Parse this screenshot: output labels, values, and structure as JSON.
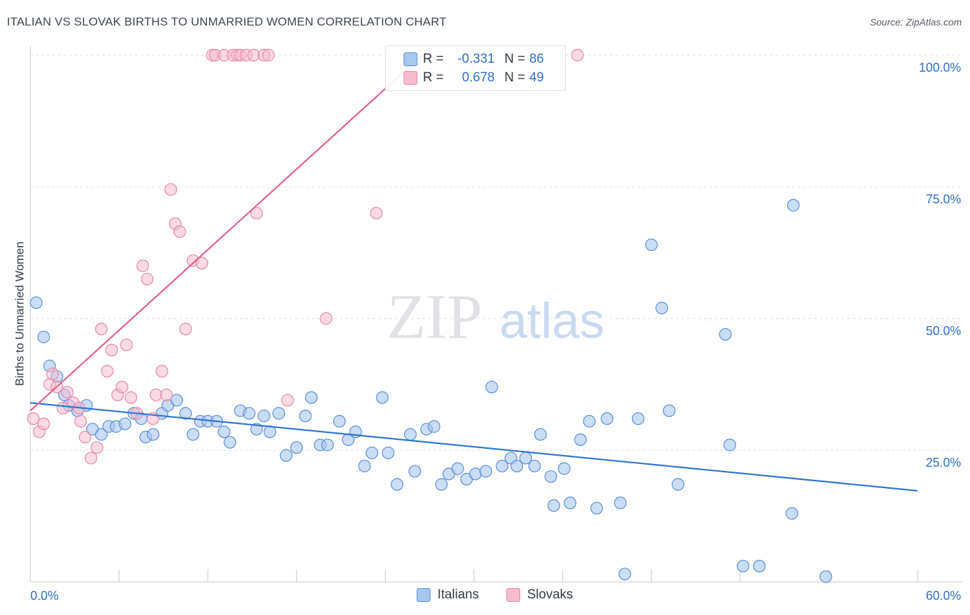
{
  "title": "ITALIAN VS SLOVAK BIRTHS TO UNMARRIED WOMEN CORRELATION CHART",
  "source": "Source: ZipAtlas.com",
  "watermark": {
    "zip": "ZIP",
    "atlas": "atlas"
  },
  "colors": {
    "italians_fill": "#a9c6ee",
    "italians_stroke": "#5b8fd6",
    "italians_line": "#2f74d0",
    "slovaks_fill": "#f6bccd",
    "slovaks_stroke": "#e58aa6",
    "slovaks_line": "#e0608a",
    "axis_label": "#2d6fc9",
    "grid": "#dcdfe4"
  },
  "legend": {
    "rows": [
      {
        "r_label": "R =",
        "r_value": "-0.331",
        "n_label": "N =",
        "n_value": "86"
      },
      {
        "r_label": "R =",
        "r_value": "0.678",
        "n_label": "N =",
        "n_value": "49"
      }
    ]
  },
  "bottom_legend": {
    "italians": "Italians",
    "slovaks": "Slovaks"
  },
  "chart_data": {
    "type": "scatter",
    "title": "ITALIAN VS SLOVAK BIRTHS TO UNMARRIED WOMEN CORRELATION CHART",
    "xlabel": "",
    "ylabel": "Births to Unmarried Women",
    "xlim": [
      0,
      60
    ],
    "ylim": [
      0,
      100
    ],
    "x_tick_labels": [
      "0.0%",
      "60.0%"
    ],
    "y_tick_values": [
      25,
      50,
      75,
      100
    ],
    "y_tick_labels": [
      "25.0%",
      "50.0%",
      "75.0%",
      "100.0%"
    ],
    "grid": true,
    "legend_position": "top-center",
    "series": [
      {
        "name": "Italians",
        "r": -0.331,
        "n": 86,
        "trend": {
          "x": [
            0,
            60
          ],
          "y": [
            34.0,
            17.3
          ]
        },
        "points": [
          [
            0.4,
            53.0
          ],
          [
            0.9,
            46.5
          ],
          [
            1.3,
            41.0
          ],
          [
            1.8,
            39.0
          ],
          [
            2.3,
            35.5
          ],
          [
            2.6,
            33.5
          ],
          [
            3.2,
            32.5
          ],
          [
            3.8,
            33.5
          ],
          [
            4.2,
            29.0
          ],
          [
            4.8,
            28.0
          ],
          [
            5.3,
            29.5
          ],
          [
            5.8,
            29.5
          ],
          [
            6.4,
            30.0
          ],
          [
            7.0,
            32.0
          ],
          [
            7.5,
            31.0
          ],
          [
            7.8,
            27.5
          ],
          [
            8.3,
            28.0
          ],
          [
            8.9,
            32.0
          ],
          [
            9.3,
            33.5
          ],
          [
            9.9,
            34.5
          ],
          [
            10.5,
            32.0
          ],
          [
            11.0,
            28.0
          ],
          [
            11.5,
            30.5
          ],
          [
            12.0,
            30.5
          ],
          [
            12.6,
            30.5
          ],
          [
            13.1,
            28.5
          ],
          [
            13.5,
            26.5
          ],
          [
            14.2,
            32.5
          ],
          [
            14.8,
            32.0
          ],
          [
            15.3,
            29.0
          ],
          [
            15.8,
            31.5
          ],
          [
            16.2,
            28.5
          ],
          [
            16.8,
            32.0
          ],
          [
            17.3,
            24.0
          ],
          [
            18.0,
            25.5
          ],
          [
            18.6,
            31.5
          ],
          [
            19.0,
            35.0
          ],
          [
            19.6,
            26.0
          ],
          [
            20.1,
            26.0
          ],
          [
            20.9,
            30.5
          ],
          [
            21.5,
            27.0
          ],
          [
            22.0,
            28.5
          ],
          [
            22.6,
            22.0
          ],
          [
            23.1,
            24.5
          ],
          [
            23.8,
            35.0
          ],
          [
            24.2,
            24.5
          ],
          [
            24.8,
            18.5
          ],
          [
            25.7,
            28.0
          ],
          [
            26.0,
            21.0
          ],
          [
            26.8,
            29.0
          ],
          [
            27.3,
            29.5
          ],
          [
            27.8,
            18.5
          ],
          [
            28.3,
            20.5
          ],
          [
            28.9,
            21.5
          ],
          [
            29.5,
            19.5
          ],
          [
            30.1,
            20.5
          ],
          [
            30.8,
            21.0
          ],
          [
            31.2,
            37.0
          ],
          [
            31.9,
            22.0
          ],
          [
            32.5,
            23.5
          ],
          [
            32.9,
            22.0
          ],
          [
            33.5,
            23.5
          ],
          [
            34.1,
            22.0
          ],
          [
            34.5,
            28.0
          ],
          [
            35.2,
            20.0
          ],
          [
            35.4,
            14.5
          ],
          [
            36.1,
            21.5
          ],
          [
            36.5,
            15.0
          ],
          [
            37.2,
            27.0
          ],
          [
            37.8,
            30.5
          ],
          [
            38.3,
            14.0
          ],
          [
            39.0,
            31.0
          ],
          [
            39.9,
            15.0
          ],
          [
            40.2,
            1.5
          ],
          [
            41.1,
            31.0
          ],
          [
            42.0,
            64.0
          ],
          [
            42.7,
            52.0
          ],
          [
            43.2,
            32.5
          ],
          [
            43.8,
            18.5
          ],
          [
            47.0,
            47.0
          ],
          [
            47.3,
            26.0
          ],
          [
            48.2,
            3.0
          ],
          [
            49.3,
            3.0
          ],
          [
            51.5,
            13.0
          ],
          [
            51.6,
            71.5
          ],
          [
            53.8,
            1.0
          ]
        ]
      },
      {
        "name": "Slovaks",
        "r": 0.678,
        "n": 49,
        "trend": {
          "x": [
            0,
            26.5
          ],
          "y": [
            32.5,
            100
          ]
        },
        "points": [
          [
            0.2,
            31.0
          ],
          [
            0.6,
            28.5
          ],
          [
            0.9,
            30.0
          ],
          [
            1.3,
            37.5
          ],
          [
            1.5,
            39.5
          ],
          [
            1.8,
            37.0
          ],
          [
            2.2,
            33.0
          ],
          [
            2.5,
            36.0
          ],
          [
            2.9,
            34.0
          ],
          [
            3.3,
            33.0
          ],
          [
            3.4,
            30.5
          ],
          [
            3.7,
            27.5
          ],
          [
            4.1,
            23.5
          ],
          [
            4.5,
            25.5
          ],
          [
            4.8,
            48.0
          ],
          [
            5.2,
            40.0
          ],
          [
            5.5,
            44.0
          ],
          [
            5.9,
            35.5
          ],
          [
            6.2,
            37.0
          ],
          [
            6.5,
            45.0
          ],
          [
            6.8,
            35.0
          ],
          [
            7.2,
            32.0
          ],
          [
            7.6,
            60.0
          ],
          [
            7.9,
            57.5
          ],
          [
            8.3,
            31.0
          ],
          [
            8.5,
            35.5
          ],
          [
            8.9,
            40.0
          ],
          [
            9.2,
            35.5
          ],
          [
            9.5,
            74.5
          ],
          [
            9.8,
            68.0
          ],
          [
            10.1,
            66.5
          ],
          [
            10.5,
            48.0
          ],
          [
            11.0,
            61.0
          ],
          [
            11.6,
            60.5
          ],
          [
            12.3,
            100
          ],
          [
            12.5,
            100
          ],
          [
            13.1,
            100
          ],
          [
            13.7,
            100
          ],
          [
            14.0,
            100
          ],
          [
            14.2,
            100
          ],
          [
            14.6,
            100
          ],
          [
            15.1,
            100
          ],
          [
            15.3,
            70.0
          ],
          [
            15.8,
            100
          ],
          [
            16.1,
            100
          ],
          [
            17.4,
            34.5
          ],
          [
            20.0,
            50.0
          ],
          [
            23.4,
            70.0
          ],
          [
            37.0,
            100
          ]
        ]
      }
    ]
  }
}
